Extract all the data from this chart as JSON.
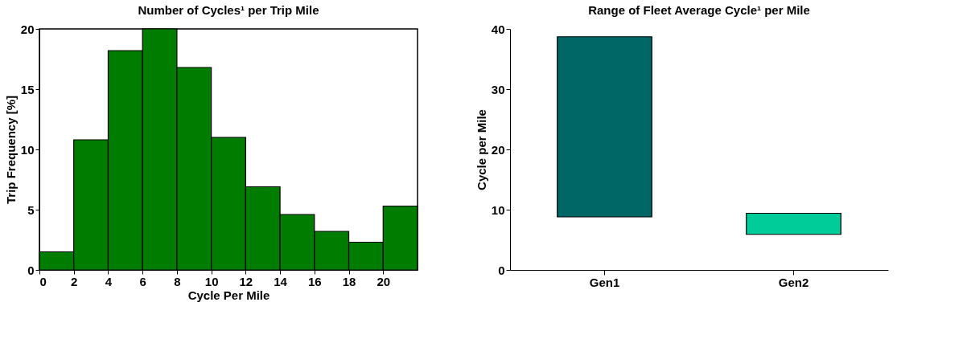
{
  "chart_data": [
    {
      "type": "histogram",
      "title": "Number of Cycles¹ per Trip Mile",
      "xlabel": "Cycle Per Mile",
      "ylabel": "Trip Frequency [%]",
      "bins": [
        0,
        2,
        4,
        6,
        8,
        10,
        12,
        14,
        16,
        18,
        20,
        22
      ],
      "values": [
        1.5,
        10.8,
        18.2,
        20,
        16.8,
        11,
        6.9,
        4.6,
        3.2,
        2.3,
        5.3
      ],
      "color": "#007c00",
      "xlim": [
        0,
        22
      ],
      "xticks": [
        0,
        2,
        4,
        6,
        8,
        10,
        12,
        14,
        16,
        18,
        20
      ],
      "ylim": [
        0,
        20
      ],
      "yticks": [
        0,
        5,
        10,
        15,
        20
      ],
      "grid": false
    },
    {
      "type": "bar",
      "title": "Range of Fleet Average Cycle¹ per Mile",
      "ylabel": "Cycle per Mile",
      "categories": [
        "Gen1",
        "Gen2"
      ],
      "base": [
        8.8,
        5.9
      ],
      "values": [
        29.9,
        3.5
      ],
      "colors": [
        "#006666",
        "#00cc99"
      ],
      "ylim": [
        0,
        40
      ],
      "yticks": [
        0,
        10,
        20,
        30,
        40
      ],
      "grid": false
    }
  ]
}
